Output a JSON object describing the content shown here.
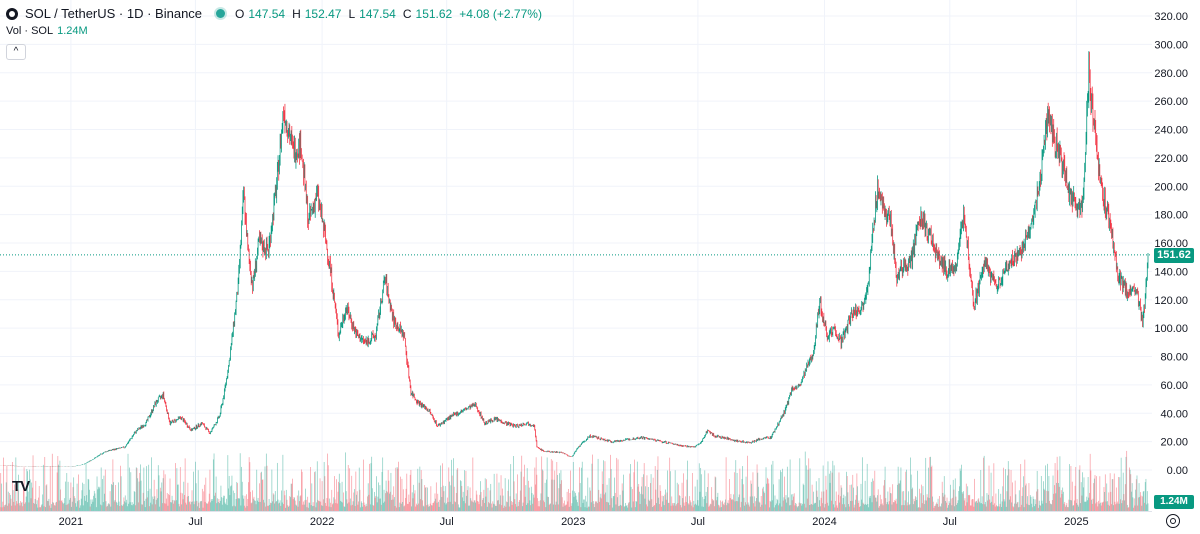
{
  "header": {
    "symbol": "SOL / TetherUS · 1D · Binance",
    "open_label": "O",
    "open": "147.54",
    "high_label": "H",
    "high": "152.47",
    "low_label": "L",
    "low": "147.54",
    "close_label": "C",
    "close": "151.62",
    "change": "+4.08 (+2.77%)"
  },
  "volume_legend": {
    "label": "Vol · SOL",
    "value": "1.24M"
  },
  "collapse_icon": "chevron-up-icon",
  "brand_icon": "tradingview-logo-icon",
  "settings_icon": "gear-icon",
  "last_price_tag": "151.62",
  "volume_tag": "1.24M",
  "colors": {
    "up": "#089981",
    "down": "#f23645",
    "grid": "#f0f3fa",
    "axis_text": "#131722"
  },
  "chart_data": {
    "type": "candlestick",
    "title": "SOL / TetherUS · 1D · Binance",
    "x_range": [
      "2020-09-20",
      "2025-04-15"
    ],
    "ylim": [
      0,
      320
    ],
    "y_ticks": [
      "320.00",
      "300.00",
      "280.00",
      "260.00",
      "240.00",
      "220.00",
      "200.00",
      "180.00",
      "160.00",
      "140.00",
      "120.00",
      "100.00",
      "80.00",
      "60.00",
      "40.00",
      "20.00",
      "0.00"
    ],
    "x_ticks": [
      {
        "label": "2021",
        "date": "2021-01-01"
      },
      {
        "label": "Jul",
        "date": "2021-07-01"
      },
      {
        "label": "2022",
        "date": "2022-01-01"
      },
      {
        "label": "Jul",
        "date": "2022-07-01"
      },
      {
        "label": "2023",
        "date": "2023-01-01"
      },
      {
        "label": "Jul",
        "date": "2023-07-01"
      },
      {
        "label": "2024",
        "date": "2024-01-01"
      },
      {
        "label": "Jul",
        "date": "2024-07-01"
      },
      {
        "label": "2025",
        "date": "2025-01-01"
      }
    ],
    "last_price": 151.62,
    "grid": true,
    "price_path": [
      [
        "2020-09-20",
        3.2
      ],
      [
        "2020-10-20",
        2.7
      ],
      [
        "2020-11-20",
        2.5
      ],
      [
        "2020-12-20",
        2.2
      ],
      [
        "2021-01-05",
        2.6
      ],
      [
        "2021-01-20",
        4.0
      ],
      [
        "2021-02-05",
        8.5
      ],
      [
        "2021-02-20",
        13.0
      ],
      [
        "2021-03-05",
        14.5
      ],
      [
        "2021-03-20",
        16.0
      ],
      [
        "2021-04-05",
        27.0
      ],
      [
        "2021-04-20",
        33.0
      ],
      [
        "2021-05-05",
        48.0
      ],
      [
        "2021-05-15",
        53.0
      ],
      [
        "2021-05-25",
        33.0
      ],
      [
        "2021-06-10",
        37.0
      ],
      [
        "2021-06-25",
        28.0
      ],
      [
        "2021-07-10",
        33.0
      ],
      [
        "2021-07-22",
        26.0
      ],
      [
        "2021-08-05",
        38.0
      ],
      [
        "2021-08-12",
        55.0
      ],
      [
        "2021-08-20",
        80.0
      ],
      [
        "2021-09-01",
        130.0
      ],
      [
        "2021-09-09",
        195.0
      ],
      [
        "2021-09-15",
        155.0
      ],
      [
        "2021-09-22",
        130.0
      ],
      [
        "2021-10-01",
        160.0
      ],
      [
        "2021-10-15",
        155.0
      ],
      [
        "2021-10-28",
        205.0
      ],
      [
        "2021-11-06",
        255.0
      ],
      [
        "2021-11-20",
        225.0
      ],
      [
        "2021-12-01",
        230.0
      ],
      [
        "2021-12-12",
        175.0
      ],
      [
        "2021-12-25",
        195.0
      ],
      [
        "2022-01-05",
        165.0
      ],
      [
        "2022-01-12",
        145.0
      ],
      [
        "2022-01-25",
        95.0
      ],
      [
        "2022-02-05",
        115.0
      ],
      [
        "2022-02-20",
        95.0
      ],
      [
        "2022-03-05",
        90.0
      ],
      [
        "2022-03-20",
        95.0
      ],
      [
        "2022-04-02",
        135.0
      ],
      [
        "2022-04-15",
        105.0
      ],
      [
        "2022-04-30",
        95.0
      ],
      [
        "2022-05-10",
        55.0
      ],
      [
        "2022-05-20",
        48.0
      ],
      [
        "2022-06-05",
        42.0
      ],
      [
        "2022-06-18",
        31.0
      ],
      [
        "2022-07-05",
        37.0
      ],
      [
        "2022-07-25",
        42.0
      ],
      [
        "2022-08-12",
        46.0
      ],
      [
        "2022-08-25",
        33.0
      ],
      [
        "2022-09-10",
        36.0
      ],
      [
        "2022-09-25",
        33.0
      ],
      [
        "2022-10-10",
        31.0
      ],
      [
        "2022-10-25",
        33.0
      ],
      [
        "2022-11-05",
        32.0
      ],
      [
        "2022-11-09",
        16.0
      ],
      [
        "2022-11-20",
        13.0
      ],
      [
        "2022-12-15",
        12.5
      ],
      [
        "2022-12-29",
        9.0
      ],
      [
        "2023-01-10",
        17.0
      ],
      [
        "2023-01-25",
        24.0
      ],
      [
        "2023-02-10",
        22.0
      ],
      [
        "2023-02-25",
        20.0
      ],
      [
        "2023-03-15",
        21.0
      ],
      [
        "2023-04-10",
        23.0
      ],
      [
        "2023-05-10",
        20.0
      ],
      [
        "2023-06-10",
        17.0
      ],
      [
        "2023-06-25",
        16.0
      ],
      [
        "2023-07-05",
        19.0
      ],
      [
        "2023-07-15",
        28.0
      ],
      [
        "2023-07-25",
        24.0
      ],
      [
        "2023-08-15",
        22.0
      ],
      [
        "2023-08-30",
        20.0
      ],
      [
        "2023-09-15",
        19.5
      ],
      [
        "2023-10-01",
        22.0
      ],
      [
        "2023-10-15",
        23.0
      ],
      [
        "2023-10-25",
        32.0
      ],
      [
        "2023-11-05",
        42.0
      ],
      [
        "2023-11-15",
        58.0
      ],
      [
        "2023-11-25",
        58.0
      ],
      [
        "2023-12-05",
        70.0
      ],
      [
        "2023-12-15",
        82.0
      ],
      [
        "2023-12-25",
        118.0
      ],
      [
        "2024-01-05",
        95.0
      ],
      [
        "2024-01-15",
        100.0
      ],
      [
        "2024-01-25",
        90.0
      ],
      [
        "2024-02-10",
        110.0
      ],
      [
        "2024-02-25",
        115.0
      ],
      [
        "2024-03-05",
        135.0
      ],
      [
        "2024-03-18",
        200.0
      ],
      [
        "2024-03-25",
        185.0
      ],
      [
        "2024-04-05",
        180.0
      ],
      [
        "2024-04-15",
        135.0
      ],
      [
        "2024-04-25",
        145.0
      ],
      [
        "2024-05-05",
        145.0
      ],
      [
        "2024-05-20",
        180.0
      ],
      [
        "2024-06-01",
        165.0
      ],
      [
        "2024-06-15",
        150.0
      ],
      [
        "2024-06-28",
        140.0
      ],
      [
        "2024-07-10",
        145.0
      ],
      [
        "2024-07-22",
        180.0
      ],
      [
        "2024-08-05",
        115.0
      ],
      [
        "2024-08-20",
        145.0
      ],
      [
        "2024-09-06",
        130.0
      ],
      [
        "2024-09-20",
        140.0
      ],
      [
        "2024-10-01",
        150.0
      ],
      [
        "2024-10-15",
        155.0
      ],
      [
        "2024-10-30",
        175.0
      ],
      [
        "2024-11-10",
        210.0
      ],
      [
        "2024-11-22",
        255.0
      ],
      [
        "2024-12-01",
        230.0
      ],
      [
        "2024-12-10",
        220.0
      ],
      [
        "2024-12-25",
        190.0
      ],
      [
        "2025-01-10",
        185.0
      ],
      [
        "2025-01-19",
        280.0
      ],
      [
        "2025-01-28",
        240.0
      ],
      [
        "2025-02-05",
        200.0
      ],
      [
        "2025-02-20",
        170.0
      ],
      [
        "2025-03-01",
        140.0
      ],
      [
        "2025-03-15",
        125.0
      ],
      [
        "2025-03-30",
        125.0
      ],
      [
        "2025-04-07",
        105.0
      ],
      [
        "2025-04-10",
        118.0
      ],
      [
        "2025-04-15",
        151.62
      ]
    ]
  }
}
